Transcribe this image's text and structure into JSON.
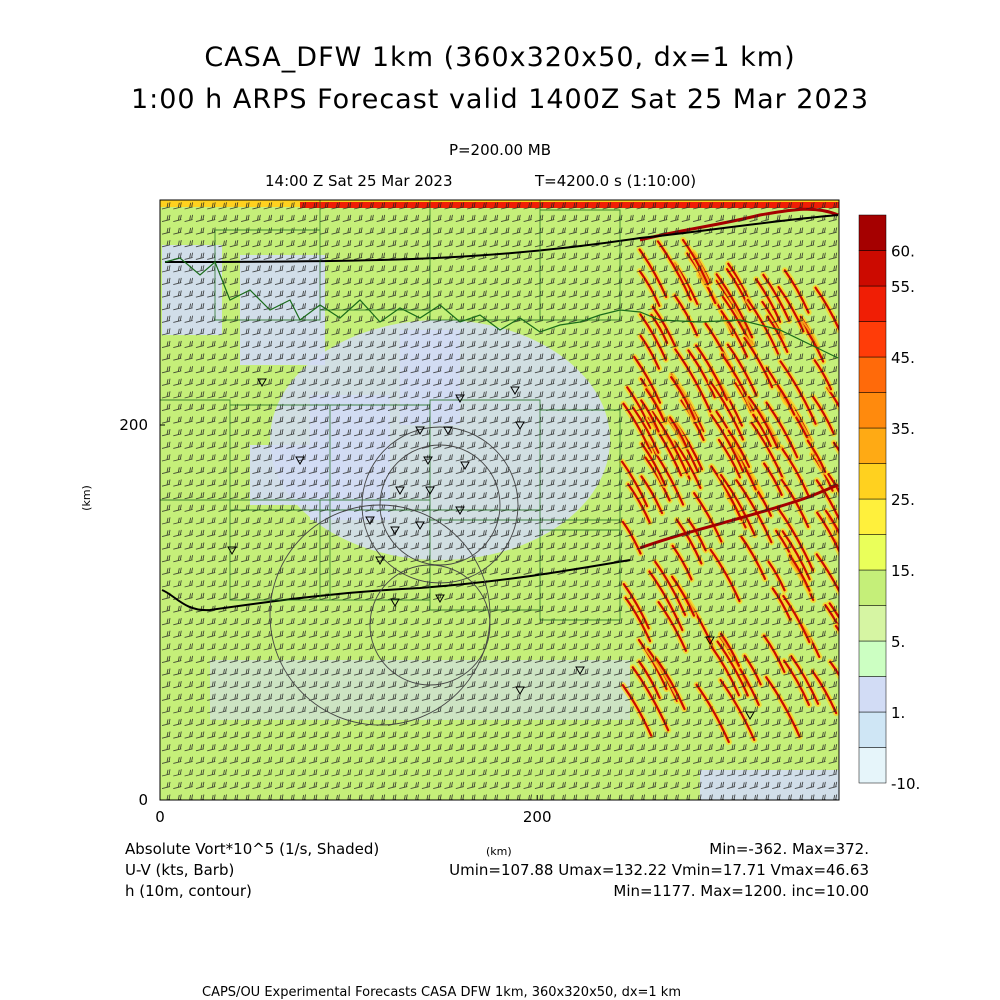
{
  "header": {
    "title_line1": "CASA_DFW 1km (360x320x50, dx=1 km)",
    "title_line2": "1:00 h ARPS Forecast valid 1400Z Sat 25 Mar 2023",
    "level": "P=200.00 MB",
    "valid_time": "14:00 Z Sat 25 Mar 2023",
    "model_time": "T=4200.0 s (1:10:00)"
  },
  "chart_data": {
    "type": "heatmap",
    "field": "Absolute Vort*10^5 (1/s, Shaded)",
    "xlabel": "(km)",
    "ylabel": "(km)",
    "x_ticks": [
      "0",
      "200"
    ],
    "y_ticks": [
      "0",
      "200"
    ],
    "xlim": [
      0,
      360
    ],
    "ylim": [
      0,
      320
    ],
    "colorbar": {
      "labels": [
        "60.",
        "55.",
        "45.",
        "35.",
        "25.",
        "15.",
        "5.",
        "1.",
        "-10."
      ],
      "levels": [
        -10,
        -5,
        1,
        3,
        5,
        10,
        15,
        20,
        25,
        30,
        35,
        40,
        45,
        50,
        55,
        60
      ],
      "colors": [
        "#e6f5fa",
        "#cfe6f5",
        "#d2dcf5",
        "#ccffc2",
        "#d6f5a3",
        "#c5ef79",
        "#eaff5a",
        "#fff03c",
        "#ffd11f",
        "#ffaa14",
        "#ff8a0d",
        "#ff6a0a",
        "#ff3c08",
        "#f01e05",
        "#cc0a00",
        "#a50000"
      ]
    },
    "background_levels": {
      "land": "#c5ef79",
      "calm": "#d2dcf5"
    },
    "wind": {
      "field": "U-V (kts, Barb)",
      "Umin": 107.88,
      "Umax": 132.22,
      "Vmin": 17.71,
      "Vmax": 46.63
    },
    "height": {
      "field": "h (10m, contour)",
      "Min": 1177,
      "Max": 1200,
      "inc": 10.0
    },
    "vort_stats": {
      "Min": -362,
      "Max": 372
    }
  },
  "footer": {
    "left_field": "Absolute Vort*10^5 (1/s, Shaded)",
    "left_wind": "U-V (kts, Barb)",
    "left_height": "h (10m, contour)",
    "center_unit": "(km)",
    "right_line1": "Min=-362. Max=372.",
    "right_line2": "Umin=107.88 Umax=132.22 Vmin=17.71 Vmax=46.63",
    "right_line3": "Min=1177. Max=1200. inc=10.00",
    "credit": "CAPS/OU Experimental Forecasts   CASA DFW 1km, 360x320x50, dx=1 km"
  }
}
